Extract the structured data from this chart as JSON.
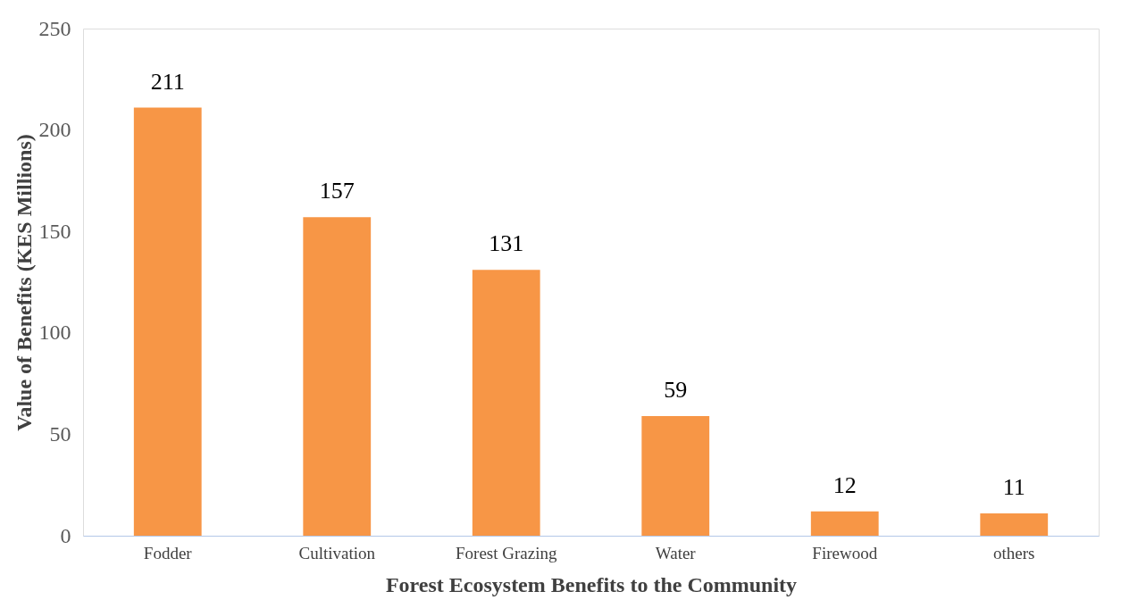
{
  "chart_data": {
    "type": "bar",
    "xlabel": "Forest Ecosystem Benefits to the Community",
    "ylabel": "Value of  Benefits  (KES Millions)",
    "categories": [
      "Fodder",
      "Cultivation",
      "Forest Grazing",
      "Water",
      "Firewood",
      "others"
    ],
    "values": [
      211,
      157,
      131,
      59,
      12,
      11
    ],
    "color": "#f79646",
    "ylim": [
      0,
      250
    ],
    "yticks": [
      0,
      50,
      100,
      150,
      200,
      250
    ],
    "grid": false,
    "data_labels": true
  }
}
